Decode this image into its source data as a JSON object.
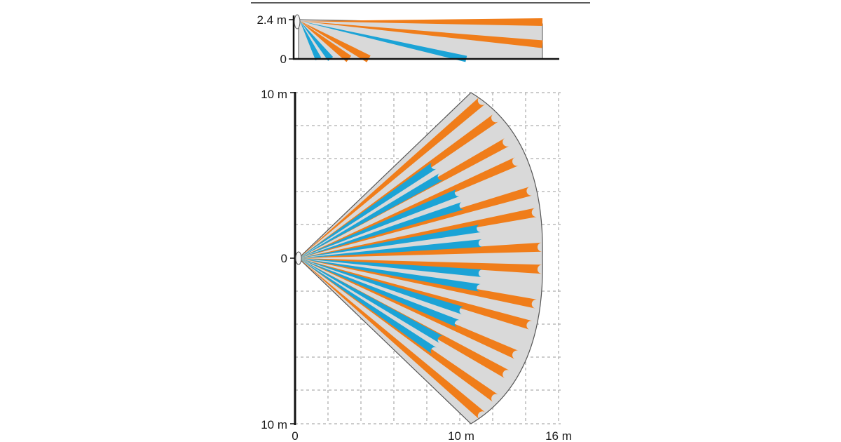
{
  "colors": {
    "background": "#ffffff",
    "coverage_area": "#d9d9d9",
    "coverage_outline": "#555555",
    "long_range_zone": "#f07d1a",
    "short_range_zone": "#1ba3d6",
    "axis": "#111111",
    "grid": "#9a9a9a"
  },
  "side_view": {
    "height_label": "2.4 m",
    "floor_label": "0",
    "mount_height_m": 2.4,
    "max_range_m": 16,
    "detector_icon": "pir-sensor-icon",
    "beams": [
      {
        "zone": "long",
        "color": "#f07d1a",
        "floor_hit_m": 16,
        "wall_hit_m": 2.25
      },
      {
        "zone": "long",
        "color": "#f07d1a",
        "floor_hit_m": 16,
        "wall_hit_m": 0.9
      },
      {
        "zone": "short",
        "color": "#1ba3d6",
        "floor_hit_m": 11
      },
      {
        "zone": "long",
        "color": "#f07d1a",
        "floor_hit_m": 4.6
      },
      {
        "zone": "long",
        "color": "#f07d1a",
        "floor_hit_m": 3.3
      },
      {
        "zone": "short",
        "color": "#1ba3d6",
        "floor_hit_m": 2.1
      },
      {
        "zone": "short",
        "color": "#1ba3d6",
        "floor_hit_m": 1.3
      }
    ]
  },
  "top_view": {
    "y_top_label": "10 m",
    "y_center_label": "0",
    "y_bottom_label": "10 m",
    "x_origin_label": "0",
    "x_mid_label": "10 m",
    "x_max_label": "16 m",
    "max_range_m": 16,
    "half_width_m": 10,
    "grid_step_m": 2,
    "detector_icon": "pir-sensor-icon",
    "long_beam_pairs": [
      {
        "angle_deg": 38,
        "range_m": 14.7
      },
      {
        "angle_deg": 26.5,
        "range_m": 14.5
      },
      {
        "angle_deg": 13.5,
        "range_m": 14.7
      },
      {
        "angle_deg": 0,
        "range_m": 14.8
      },
      {
        "angle_deg": -13.5,
        "range_m": 14.7
      },
      {
        "angle_deg": -26.5,
        "range_m": 14.5
      },
      {
        "angle_deg": -38,
        "range_m": 14.7
      }
    ],
    "short_beam_pairs": [
      {
        "angle_deg": 32,
        "range_m": 10.0
      },
      {
        "angle_deg": 20,
        "range_m": 10.5
      },
      {
        "angle_deg": 7,
        "range_m": 11.2
      },
      {
        "angle_deg": -7,
        "range_m": 11.2
      },
      {
        "angle_deg": -20,
        "range_m": 10.5
      },
      {
        "angle_deg": -32,
        "range_m": 10.0
      }
    ]
  }
}
